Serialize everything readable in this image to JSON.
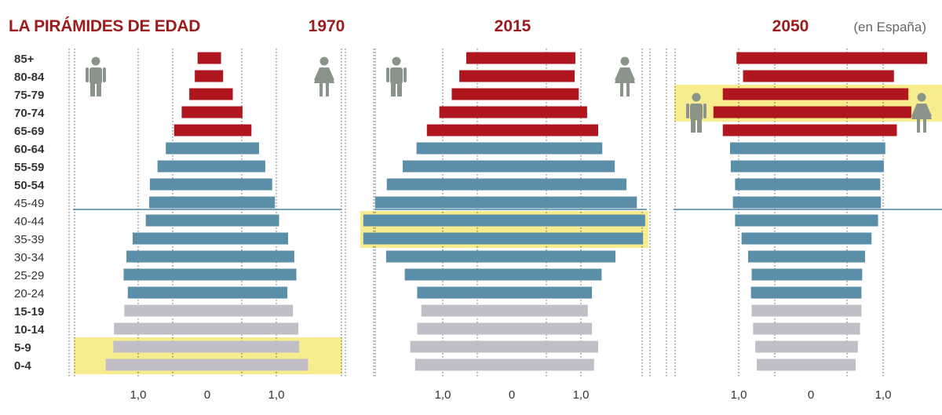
{
  "title": "LA PIRÁMIDES DE EDAD",
  "note": "(en España)",
  "age_groups": [
    "85+",
    "80-84",
    "75-79",
    "70-74",
    "65-69",
    "60-64",
    "55-59",
    "50-54",
    "45-49",
    "40-44",
    "35-39",
    "30-34",
    "25-29",
    "20-24",
    "15-19",
    "10-14",
    "5-9",
    "0-4"
  ],
  "age_label_bold": [
    true,
    true,
    true,
    true,
    true,
    true,
    true,
    true,
    false,
    false,
    false,
    false,
    false,
    false,
    true,
    true,
    true,
    true
  ],
  "colors": {
    "title": "#9b1c1c",
    "elderly": "#b0161d",
    "working": "#5b8ea8",
    "youth": "#c1bec7",
    "highlight": "#f7ec8e",
    "grid": "#555555",
    "divider": "#2a6a90",
    "icon": "#8a948a",
    "label": "#333333"
  },
  "icons": {
    "man": "man-icon",
    "woman": "woman-icon"
  },
  "chart_data": [
    {
      "type": "bar",
      "title": "1970",
      "tick_labels": [
        "1,0",
        "0",
        "1,0"
      ],
      "series": [
        {
          "name": "Hombres",
          "values": [
            0.14,
            0.18,
            0.26,
            0.37,
            0.48,
            0.6,
            0.72,
            0.83,
            0.84,
            0.89,
            1.08,
            1.17,
            1.21,
            1.15,
            1.2,
            1.35,
            1.36,
            1.47
          ]
        },
        {
          "name": "Mujeres",
          "values": [
            0.2,
            0.23,
            0.37,
            0.51,
            0.64,
            0.75,
            0.84,
            0.94,
            0.98,
            1.04,
            1.17,
            1.26,
            1.29,
            1.16,
            1.24,
            1.32,
            1.33,
            1.46
          ]
        }
      ],
      "highlight_rows": [
        "5-9",
        "0-4"
      ],
      "icons_rows": [
        "85+",
        "65-69"
      ]
    },
    {
      "type": "bar",
      "title": "2015",
      "tick_labels": [
        "1,0",
        "0",
        "1,0"
      ],
      "series": [
        {
          "name": "Hombres",
          "values": [
            0.66,
            0.76,
            0.87,
            1.05,
            1.23,
            1.38,
            1.58,
            1.81,
            1.98,
            2.15,
            2.15,
            1.82,
            1.55,
            1.37,
            1.31,
            1.37,
            1.47,
            1.4
          ]
        },
        {
          "name": "Mujeres",
          "values": [
            0.92,
            0.91,
            0.97,
            1.09,
            1.25,
            1.31,
            1.49,
            1.66,
            1.81,
            1.93,
            1.9,
            1.5,
            1.3,
            1.16,
            1.1,
            1.16,
            1.25,
            1.19
          ]
        }
      ],
      "highlight_rows": [
        "40-44",
        "35-39"
      ],
      "icons_rows": [
        "85+",
        "65-69"
      ]
    },
    {
      "type": "bar",
      "title": "2050",
      "tick_labels": [
        "1,0",
        "0",
        "1,0"
      ],
      "series": [
        {
          "name": "Hombres",
          "values": [
            1.03,
            0.94,
            1.22,
            1.35,
            1.22,
            1.12,
            1.11,
            1.05,
            1.08,
            1.05,
            0.96,
            0.87,
            0.82,
            0.83,
            0.82,
            0.8,
            0.77,
            0.75
          ]
        },
        {
          "name": "Mujeres",
          "values": [
            1.61,
            1.15,
            1.35,
            1.39,
            1.19,
            1.03,
            1.01,
            0.96,
            0.97,
            0.93,
            0.84,
            0.75,
            0.71,
            0.7,
            0.7,
            0.68,
            0.65,
            0.62
          ]
        }
      ],
      "highlight_rows": [
        "75-79",
        "70-74"
      ],
      "icons_rows": [
        "75-79",
        "70-74"
      ]
    }
  ]
}
